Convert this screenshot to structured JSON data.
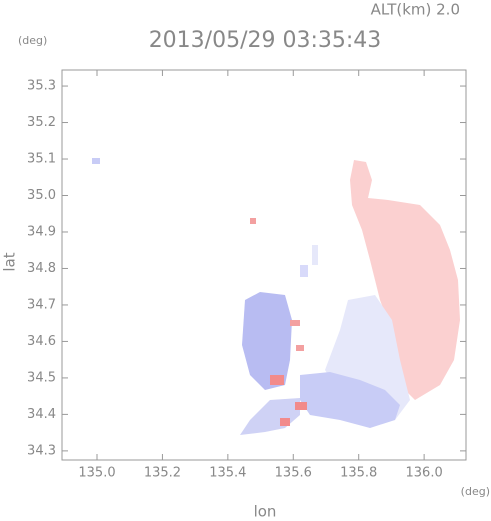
{
  "chart_data": {
    "type": "heatmap",
    "title": "2013/05/29 03:35:43",
    "annotation": "ALT(km) 2.0",
    "y_unit": "(deg)",
    "x_unit": "(deg)",
    "ylabel": "lat",
    "xlabel": "lon",
    "xlim": [
      134.893,
      136.128
    ],
    "ylim": [
      34.275,
      35.344
    ],
    "xticks": [
      {
        "value": 135.0,
        "label": "135.0"
      },
      135.2,
      135.4,
      135.6,
      135.8,
      {
        "value": 136.0,
        "label": "136.0"
      }
    ],
    "yticks": [
      34.3,
      34.4,
      34.5,
      34.6,
      34.7,
      34.8,
      34.9,
      {
        "value": 35.0,
        "label": "35.0"
      },
      35.1,
      35.2,
      35.3
    ]
  }
}
